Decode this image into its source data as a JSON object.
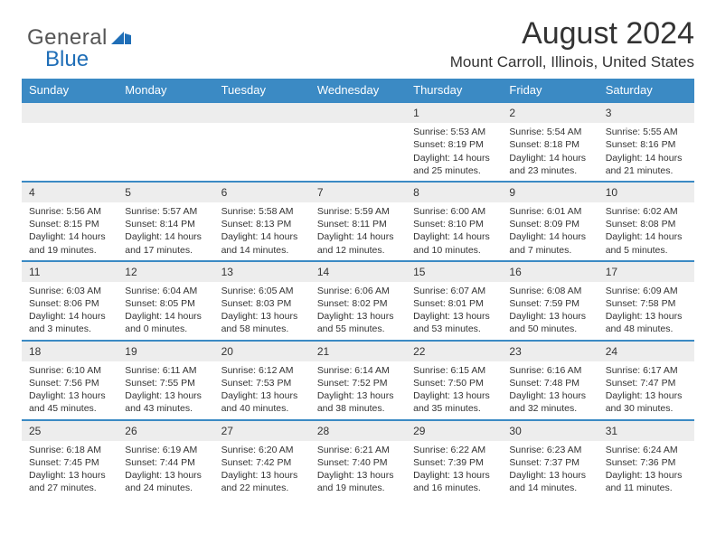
{
  "brand": {
    "general": "General",
    "blue": "Blue"
  },
  "title": "August 2024",
  "location": "Mount Carroll, Illinois, United States",
  "colors": {
    "header_bg": "#3b8ac4",
    "header_text": "#ffffff",
    "daynum_bg": "#ededed",
    "rule": "#3b8ac4",
    "text": "#333333",
    "logo_gray": "#555555",
    "logo_blue": "#1f6eb7"
  },
  "dow": [
    "Sunday",
    "Monday",
    "Tuesday",
    "Wednesday",
    "Thursday",
    "Friday",
    "Saturday"
  ],
  "weeks": [
    [
      {
        "n": "",
        "sr": "",
        "ss": "",
        "dl1": "",
        "dl2": ""
      },
      {
        "n": "",
        "sr": "",
        "ss": "",
        "dl1": "",
        "dl2": ""
      },
      {
        "n": "",
        "sr": "",
        "ss": "",
        "dl1": "",
        "dl2": ""
      },
      {
        "n": "",
        "sr": "",
        "ss": "",
        "dl1": "",
        "dl2": ""
      },
      {
        "n": "1",
        "sr": "Sunrise: 5:53 AM",
        "ss": "Sunset: 8:19 PM",
        "dl1": "Daylight: 14 hours",
        "dl2": "and 25 minutes."
      },
      {
        "n": "2",
        "sr": "Sunrise: 5:54 AM",
        "ss": "Sunset: 8:18 PM",
        "dl1": "Daylight: 14 hours",
        "dl2": "and 23 minutes."
      },
      {
        "n": "3",
        "sr": "Sunrise: 5:55 AM",
        "ss": "Sunset: 8:16 PM",
        "dl1": "Daylight: 14 hours",
        "dl2": "and 21 minutes."
      }
    ],
    [
      {
        "n": "4",
        "sr": "Sunrise: 5:56 AM",
        "ss": "Sunset: 8:15 PM",
        "dl1": "Daylight: 14 hours",
        "dl2": "and 19 minutes."
      },
      {
        "n": "5",
        "sr": "Sunrise: 5:57 AM",
        "ss": "Sunset: 8:14 PM",
        "dl1": "Daylight: 14 hours",
        "dl2": "and 17 minutes."
      },
      {
        "n": "6",
        "sr": "Sunrise: 5:58 AM",
        "ss": "Sunset: 8:13 PM",
        "dl1": "Daylight: 14 hours",
        "dl2": "and 14 minutes."
      },
      {
        "n": "7",
        "sr": "Sunrise: 5:59 AM",
        "ss": "Sunset: 8:11 PM",
        "dl1": "Daylight: 14 hours",
        "dl2": "and 12 minutes."
      },
      {
        "n": "8",
        "sr": "Sunrise: 6:00 AM",
        "ss": "Sunset: 8:10 PM",
        "dl1": "Daylight: 14 hours",
        "dl2": "and 10 minutes."
      },
      {
        "n": "9",
        "sr": "Sunrise: 6:01 AM",
        "ss": "Sunset: 8:09 PM",
        "dl1": "Daylight: 14 hours",
        "dl2": "and 7 minutes."
      },
      {
        "n": "10",
        "sr": "Sunrise: 6:02 AM",
        "ss": "Sunset: 8:08 PM",
        "dl1": "Daylight: 14 hours",
        "dl2": "and 5 minutes."
      }
    ],
    [
      {
        "n": "11",
        "sr": "Sunrise: 6:03 AM",
        "ss": "Sunset: 8:06 PM",
        "dl1": "Daylight: 14 hours",
        "dl2": "and 3 minutes."
      },
      {
        "n": "12",
        "sr": "Sunrise: 6:04 AM",
        "ss": "Sunset: 8:05 PM",
        "dl1": "Daylight: 14 hours",
        "dl2": "and 0 minutes."
      },
      {
        "n": "13",
        "sr": "Sunrise: 6:05 AM",
        "ss": "Sunset: 8:03 PM",
        "dl1": "Daylight: 13 hours",
        "dl2": "and 58 minutes."
      },
      {
        "n": "14",
        "sr": "Sunrise: 6:06 AM",
        "ss": "Sunset: 8:02 PM",
        "dl1": "Daylight: 13 hours",
        "dl2": "and 55 minutes."
      },
      {
        "n": "15",
        "sr": "Sunrise: 6:07 AM",
        "ss": "Sunset: 8:01 PM",
        "dl1": "Daylight: 13 hours",
        "dl2": "and 53 minutes."
      },
      {
        "n": "16",
        "sr": "Sunrise: 6:08 AM",
        "ss": "Sunset: 7:59 PM",
        "dl1": "Daylight: 13 hours",
        "dl2": "and 50 minutes."
      },
      {
        "n": "17",
        "sr": "Sunrise: 6:09 AM",
        "ss": "Sunset: 7:58 PM",
        "dl1": "Daylight: 13 hours",
        "dl2": "and 48 minutes."
      }
    ],
    [
      {
        "n": "18",
        "sr": "Sunrise: 6:10 AM",
        "ss": "Sunset: 7:56 PM",
        "dl1": "Daylight: 13 hours",
        "dl2": "and 45 minutes."
      },
      {
        "n": "19",
        "sr": "Sunrise: 6:11 AM",
        "ss": "Sunset: 7:55 PM",
        "dl1": "Daylight: 13 hours",
        "dl2": "and 43 minutes."
      },
      {
        "n": "20",
        "sr": "Sunrise: 6:12 AM",
        "ss": "Sunset: 7:53 PM",
        "dl1": "Daylight: 13 hours",
        "dl2": "and 40 minutes."
      },
      {
        "n": "21",
        "sr": "Sunrise: 6:14 AM",
        "ss": "Sunset: 7:52 PM",
        "dl1": "Daylight: 13 hours",
        "dl2": "and 38 minutes."
      },
      {
        "n": "22",
        "sr": "Sunrise: 6:15 AM",
        "ss": "Sunset: 7:50 PM",
        "dl1": "Daylight: 13 hours",
        "dl2": "and 35 minutes."
      },
      {
        "n": "23",
        "sr": "Sunrise: 6:16 AM",
        "ss": "Sunset: 7:48 PM",
        "dl1": "Daylight: 13 hours",
        "dl2": "and 32 minutes."
      },
      {
        "n": "24",
        "sr": "Sunrise: 6:17 AM",
        "ss": "Sunset: 7:47 PM",
        "dl1": "Daylight: 13 hours",
        "dl2": "and 30 minutes."
      }
    ],
    [
      {
        "n": "25",
        "sr": "Sunrise: 6:18 AM",
        "ss": "Sunset: 7:45 PM",
        "dl1": "Daylight: 13 hours",
        "dl2": "and 27 minutes."
      },
      {
        "n": "26",
        "sr": "Sunrise: 6:19 AM",
        "ss": "Sunset: 7:44 PM",
        "dl1": "Daylight: 13 hours",
        "dl2": "and 24 minutes."
      },
      {
        "n": "27",
        "sr": "Sunrise: 6:20 AM",
        "ss": "Sunset: 7:42 PM",
        "dl1": "Daylight: 13 hours",
        "dl2": "and 22 minutes."
      },
      {
        "n": "28",
        "sr": "Sunrise: 6:21 AM",
        "ss": "Sunset: 7:40 PM",
        "dl1": "Daylight: 13 hours",
        "dl2": "and 19 minutes."
      },
      {
        "n": "29",
        "sr": "Sunrise: 6:22 AM",
        "ss": "Sunset: 7:39 PM",
        "dl1": "Daylight: 13 hours",
        "dl2": "and 16 minutes."
      },
      {
        "n": "30",
        "sr": "Sunrise: 6:23 AM",
        "ss": "Sunset: 7:37 PM",
        "dl1": "Daylight: 13 hours",
        "dl2": "and 14 minutes."
      },
      {
        "n": "31",
        "sr": "Sunrise: 6:24 AM",
        "ss": "Sunset: 7:36 PM",
        "dl1": "Daylight: 13 hours",
        "dl2": "and 11 minutes."
      }
    ]
  ]
}
